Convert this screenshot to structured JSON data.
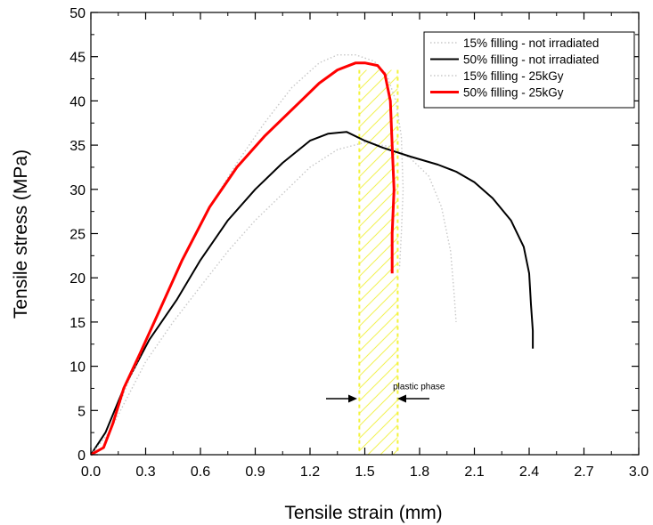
{
  "chart_data": {
    "type": "line",
    "xlabel": "Tensile strain (mm)",
    "ylabel": "Tensile stress (MPa)",
    "xlim": [
      0,
      3.0
    ],
    "ylim": [
      0,
      50
    ],
    "x_ticks": [
      "0.0",
      "0.3",
      "0.6",
      "0.9",
      "1.2",
      "1.5",
      "1.8",
      "2.1",
      "2.4",
      "2.7",
      "3.0"
    ],
    "y_ticks": [
      "0",
      "5",
      "10",
      "15",
      "20",
      "25",
      "30",
      "35",
      "40",
      "45",
      "50"
    ],
    "grid": false,
    "legend_position": "top-right",
    "series": [
      {
        "name": "15% filling - not irradiated",
        "color": "#c8c8c8",
        "style": "dotted",
        "points": [
          [
            0.0,
            0
          ],
          [
            0.1,
            2.5
          ],
          [
            0.2,
            6.5
          ],
          [
            0.3,
            10.5
          ],
          [
            0.45,
            15
          ],
          [
            0.6,
            19
          ],
          [
            0.75,
            23
          ],
          [
            0.9,
            26.5
          ],
          [
            1.05,
            29.5
          ],
          [
            1.2,
            32.5
          ],
          [
            1.35,
            34.5
          ],
          [
            1.5,
            35.3
          ],
          [
            1.65,
            34.8
          ],
          [
            1.75,
            33.5
          ],
          [
            1.85,
            31.5
          ],
          [
            1.92,
            28
          ],
          [
            1.97,
            23
          ],
          [
            1.99,
            18
          ],
          [
            2.0,
            15
          ]
        ]
      },
      {
        "name": "50% filling - not irradiated",
        "color": "#000000",
        "style": "solid",
        "points": [
          [
            0.0,
            0
          ],
          [
            0.08,
            2.5
          ],
          [
            0.18,
            7.5
          ],
          [
            0.32,
            13
          ],
          [
            0.47,
            17.5
          ],
          [
            0.6,
            22
          ],
          [
            0.75,
            26.5
          ],
          [
            0.9,
            30
          ],
          [
            1.05,
            33
          ],
          [
            1.2,
            35.5
          ],
          [
            1.3,
            36.3
          ],
          [
            1.4,
            36.5
          ],
          [
            1.5,
            35.5
          ],
          [
            1.6,
            34.7
          ],
          [
            1.75,
            33.7
          ],
          [
            1.9,
            32.8
          ],
          [
            2.0,
            32
          ],
          [
            2.1,
            30.8
          ],
          [
            2.2,
            29
          ],
          [
            2.3,
            26.5
          ],
          [
            2.37,
            23.5
          ],
          [
            2.4,
            20.5
          ],
          [
            2.41,
            17
          ],
          [
            2.42,
            14
          ],
          [
            2.42,
            12
          ]
        ]
      },
      {
        "name": "15% filling - 25kGy",
        "color": "#c8c8c8",
        "style": "dotted",
        "points": [
          [
            0.0,
            0
          ],
          [
            0.1,
            2.5
          ],
          [
            0.2,
            8
          ],
          [
            0.35,
            15
          ],
          [
            0.5,
            22
          ],
          [
            0.65,
            28
          ],
          [
            0.8,
            33
          ],
          [
            0.95,
            37.5
          ],
          [
            1.1,
            41.5
          ],
          [
            1.25,
            44.3
          ],
          [
            1.35,
            45.2
          ],
          [
            1.45,
            45.2
          ],
          [
            1.55,
            44.5
          ],
          [
            1.62,
            43
          ],
          [
            1.67,
            40
          ],
          [
            1.7,
            36
          ],
          [
            1.71,
            30
          ],
          [
            1.7,
            25
          ],
          [
            1.69,
            21
          ]
        ]
      },
      {
        "name": "50% filling - 25kGy",
        "color": "#ff0000",
        "style": "solid",
        "points": [
          [
            0.0,
            0
          ],
          [
            0.07,
            0.8
          ],
          [
            0.12,
            3.5
          ],
          [
            0.18,
            7.5
          ],
          [
            0.27,
            11.5
          ],
          [
            0.38,
            16.5
          ],
          [
            0.5,
            22
          ],
          [
            0.65,
            28
          ],
          [
            0.8,
            32.5
          ],
          [
            0.95,
            36
          ],
          [
            1.05,
            38
          ],
          [
            1.15,
            40
          ],
          [
            1.25,
            42
          ],
          [
            1.35,
            43.5
          ],
          [
            1.45,
            44.3
          ],
          [
            1.5,
            44.3
          ],
          [
            1.57,
            44
          ],
          [
            1.61,
            43
          ],
          [
            1.64,
            40
          ],
          [
            1.65,
            35
          ],
          [
            1.66,
            30
          ],
          [
            1.65,
            25
          ],
          [
            1.65,
            20.5
          ]
        ]
      }
    ],
    "annotations": [
      {
        "text": "plastic phase",
        "x": 1.82,
        "y": 7.7
      }
    ],
    "shaded_region": {
      "x_start": 1.47,
      "x_end": 1.68,
      "y_start": 0,
      "y_end": 43.5,
      "color": "#ffff66"
    }
  }
}
